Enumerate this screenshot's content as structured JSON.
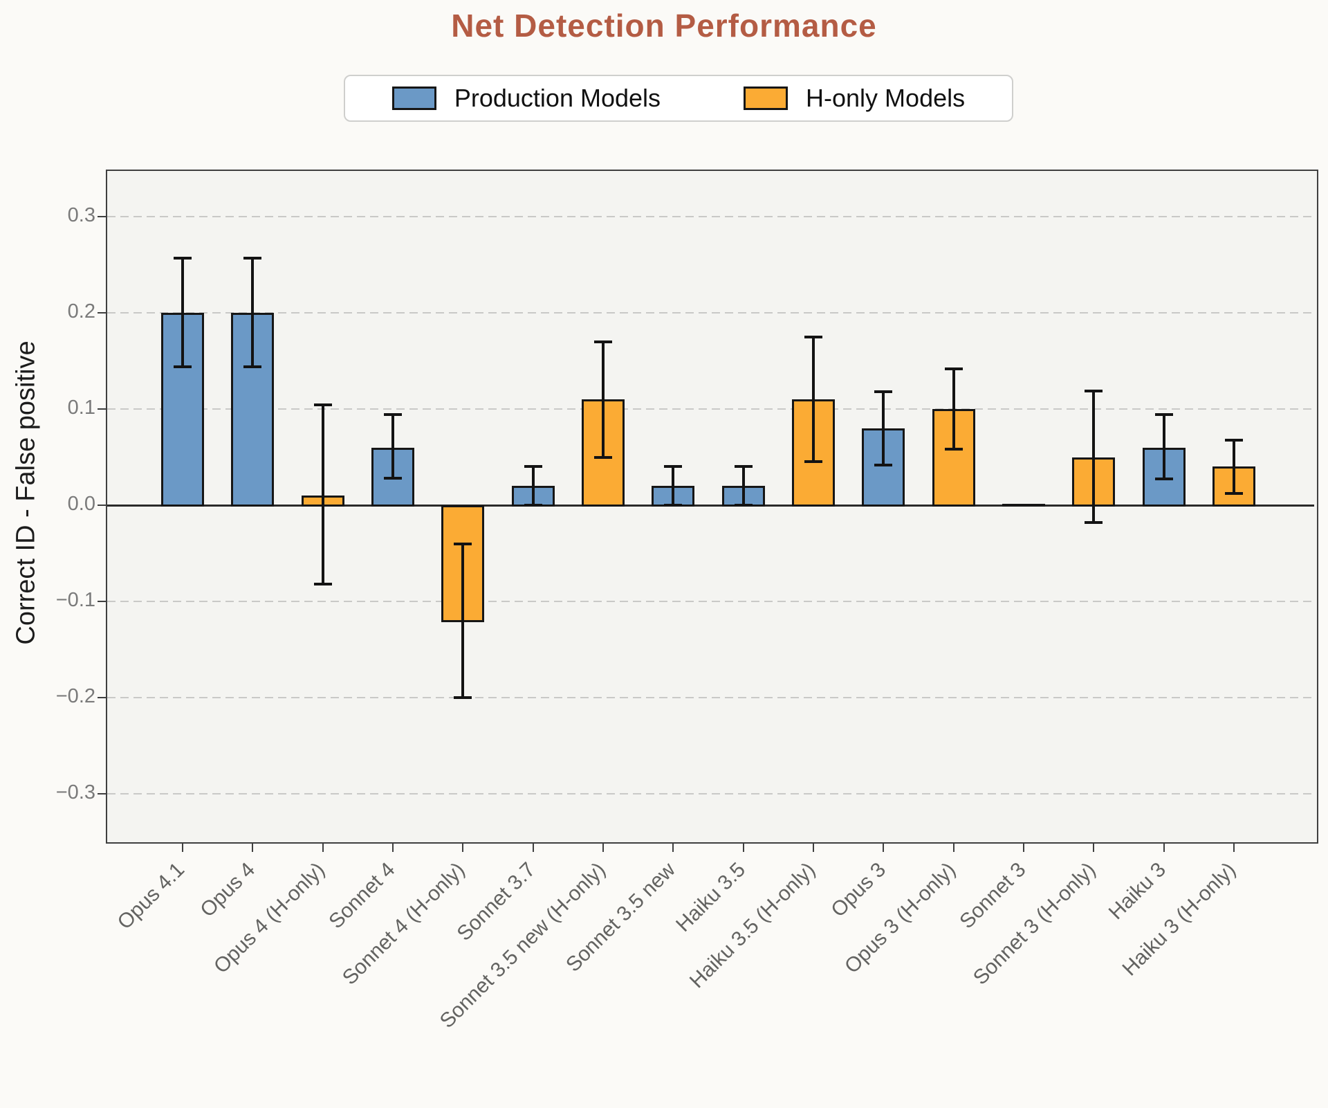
{
  "title": {
    "text": "Net Detection Performance",
    "color": "#b45c44"
  },
  "legend": {
    "items": [
      {
        "label": "Production Models",
        "series": "production",
        "color": "#6b99c6"
      },
      {
        "label": "H-only Models",
        "series": "h_only",
        "color": "#fbab34"
      }
    ]
  },
  "chart_data": {
    "type": "bar",
    "title": "Net Detection Performance",
    "xlabel": "",
    "ylabel": "Correct ID - False positive",
    "ylim": [
      -0.349,
      0.349
    ],
    "grid": "horizontal dashed gridlines at labeled ticks, solid line at 0",
    "legend_position": "top center above plot",
    "error_bars": true,
    "yticks": [
      {
        "value": 0.3,
        "label": "0.3"
      },
      {
        "value": 0.2,
        "label": "0.2"
      },
      {
        "value": 0.1,
        "label": "0.1"
      },
      {
        "value": 0.0,
        "label": "0.0"
      },
      {
        "value": -0.1,
        "label": "−0.1"
      },
      {
        "value": -0.2,
        "label": "−0.2"
      },
      {
        "value": -0.3,
        "label": "−0.3"
      }
    ],
    "series_colors": {
      "production": "#6b99c6",
      "h_only": "#fbab34"
    },
    "bars": [
      {
        "label": "Opus 4.1",
        "series": "production",
        "value": 0.2,
        "ci_low": 0.144,
        "ci_high": 0.257
      },
      {
        "label": "Opus 4",
        "series": "production",
        "value": 0.2,
        "ci_low": 0.144,
        "ci_high": 0.257
      },
      {
        "label": "Opus 4 (H-only)",
        "series": "h_only",
        "value": 0.01,
        "ci_low": -0.082,
        "ci_high": 0.104
      },
      {
        "label": "Sonnet 4",
        "series": "production",
        "value": 0.06,
        "ci_low": 0.028,
        "ci_high": 0.094
      },
      {
        "label": "Sonnet 4 (H-only)",
        "series": "h_only",
        "value": -0.12,
        "ci_low": -0.2,
        "ci_high": -0.04
      },
      {
        "label": "Sonnet 3.7",
        "series": "production",
        "value": 0.02,
        "ci_low": 0.0,
        "ci_high": 0.04
      },
      {
        "label": "Sonnet 3.5 new (H-only)",
        "series": "h_only",
        "value": 0.11,
        "ci_low": 0.05,
        "ci_high": 0.17
      },
      {
        "label": "Sonnet 3.5 new",
        "series": "production",
        "value": 0.02,
        "ci_low": 0.0,
        "ci_high": 0.04
      },
      {
        "label": "Haiku 3.5",
        "series": "production",
        "value": 0.02,
        "ci_low": 0.0,
        "ci_high": 0.04
      },
      {
        "label": "Haiku 3.5 (H-only)",
        "series": "h_only",
        "value": 0.11,
        "ci_low": 0.045,
        "ci_high": 0.175
      },
      {
        "label": "Opus 3",
        "series": "production",
        "value": 0.08,
        "ci_low": 0.042,
        "ci_high": 0.118
      },
      {
        "label": "Opus 3 (H-only)",
        "series": "h_only",
        "value": 0.1,
        "ci_low": 0.058,
        "ci_high": 0.142
      },
      {
        "label": "Sonnet 3",
        "series": "production",
        "value": 0.0,
        "ci_low": 0.0,
        "ci_high": 0.0
      },
      {
        "label": "Sonnet 3 (H-only)",
        "series": "h_only",
        "value": 0.05,
        "ci_low": -0.018,
        "ci_high": 0.119
      },
      {
        "label": "Haiku 3",
        "series": "production",
        "value": 0.06,
        "ci_low": 0.027,
        "ci_high": 0.094
      },
      {
        "label": "Haiku 3 (H-only)",
        "series": "h_only",
        "value": 0.04,
        "ci_low": 0.012,
        "ci_high": 0.068
      }
    ]
  }
}
